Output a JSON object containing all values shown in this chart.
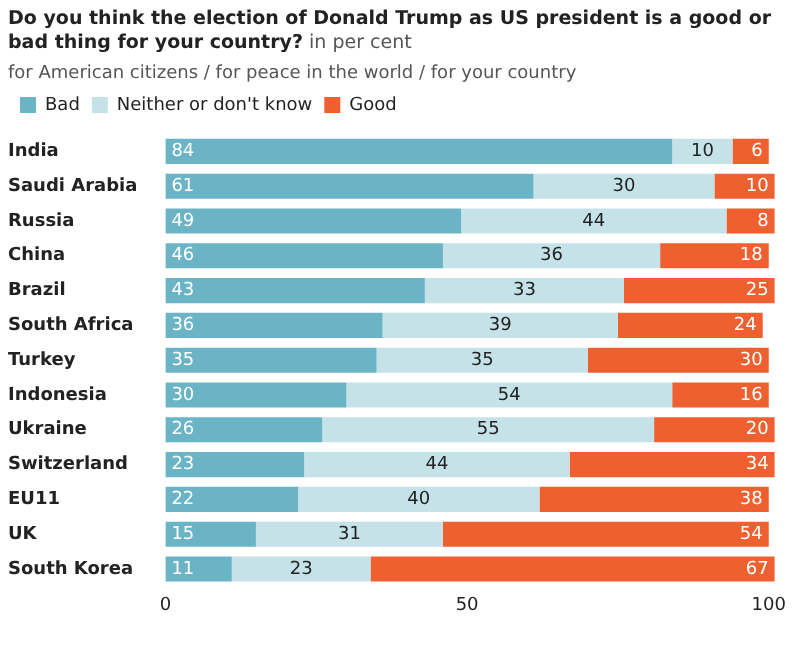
{
  "chart_data": {
    "type": "bar",
    "orientation": "horizontal",
    "stacked": true,
    "title": "Do you think the election of Donald Trump as US president is a good or bad thing for your country?",
    "subtitle": "in per cent",
    "annotations": [
      "for American citizens / for peace in the world / for your country"
    ],
    "categories": [
      "India",
      "Saudi Arabia",
      "Russia",
      "China",
      "Brazil",
      "South Africa",
      "Turkey",
      "Indonesia",
      "Ukraine",
      "Switzerland",
      "EU11",
      "UK",
      "South Korea"
    ],
    "series": [
      {
        "name": "Bad",
        "color": "#6ab4c6",
        "values": [
          84,
          61,
          49,
          46,
          43,
          36,
          35,
          30,
          26,
          23,
          22,
          15,
          11
        ]
      },
      {
        "name": "Neither or don't know",
        "color": "#c5e2e8",
        "values": [
          10,
          30,
          44,
          36,
          33,
          39,
          35,
          54,
          55,
          44,
          40,
          31,
          23
        ]
      },
      {
        "name": "Good",
        "color": "#ee6030",
        "values": [
          6,
          10,
          8,
          18,
          25,
          24,
          30,
          16,
          20,
          34,
          38,
          54,
          67
        ]
      }
    ],
    "xlim": [
      0,
      101
    ],
    "xticks": [
      0,
      50,
      100
    ],
    "grid": false,
    "legend": "top left",
    "data_labels": true
  }
}
